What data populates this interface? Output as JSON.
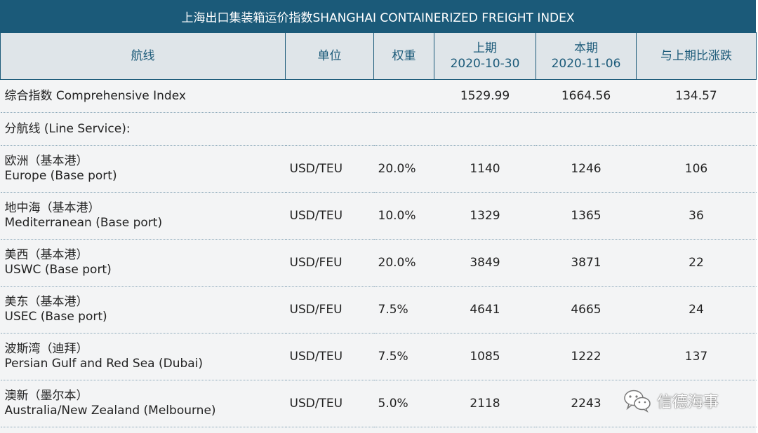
{
  "title": "上海出口集装箱运价指数SHANGHAI CONTAINERIZED FREIGHT INDEX",
  "header": {
    "route": "航线",
    "unit": "单位",
    "weight": "权重",
    "prev_label": "上期",
    "prev_date": "2020-10-30",
    "curr_label": "本期",
    "curr_date": "2020-11-06",
    "change": "与上期比涨跌"
  },
  "comprehensive": {
    "label": "综合指数 Comprehensive Index",
    "prev": "1529.99",
    "curr": "1664.56",
    "change": "134.57"
  },
  "line_service_label": "分航线 (Line Service):",
  "rows": [
    {
      "cn": "欧洲（基本港）",
      "en": "Europe (Base port)",
      "unit": "USD/TEU",
      "weight": "20.0%",
      "prev": "1140",
      "curr": "1246",
      "change": "106"
    },
    {
      "cn": "地中海（基本港）",
      "en": "Mediterranean (Base port)",
      "unit": "USD/TEU",
      "weight": "10.0%",
      "prev": "1329",
      "curr": "1365",
      "change": "36"
    },
    {
      "cn": "美西（基本港）",
      "en": "USWC (Base port)",
      "unit": "USD/FEU",
      "weight": "20.0%",
      "prev": "3849",
      "curr": "3871",
      "change": "22"
    },
    {
      "cn": "美东（基本港）",
      "en": "USEC (Base port)",
      "unit": "USD/FEU",
      "weight": "7.5%",
      "prev": "4641",
      "curr": "4665",
      "change": "24"
    },
    {
      "cn": "波斯湾（迪拜）",
      "en": "Persian Gulf and Red Sea (Dubai)",
      "unit": "USD/TEU",
      "weight": "7.5%",
      "prev": "1085",
      "curr": "1222",
      "change": "137"
    },
    {
      "cn": "澳新（墨尔本）",
      "en": "Australia/New Zealand (Melbourne)",
      "unit": "USD/TEU",
      "weight": "5.0%",
      "prev": "2118",
      "curr": "2243",
      "change": ""
    }
  ],
  "watermark": {
    "text": "信德海事",
    "icon": "wechat-icon"
  },
  "colors": {
    "header_bar": "#1b5a79",
    "header_cells": "#dfe5e9",
    "background": "#f3f4f5"
  }
}
